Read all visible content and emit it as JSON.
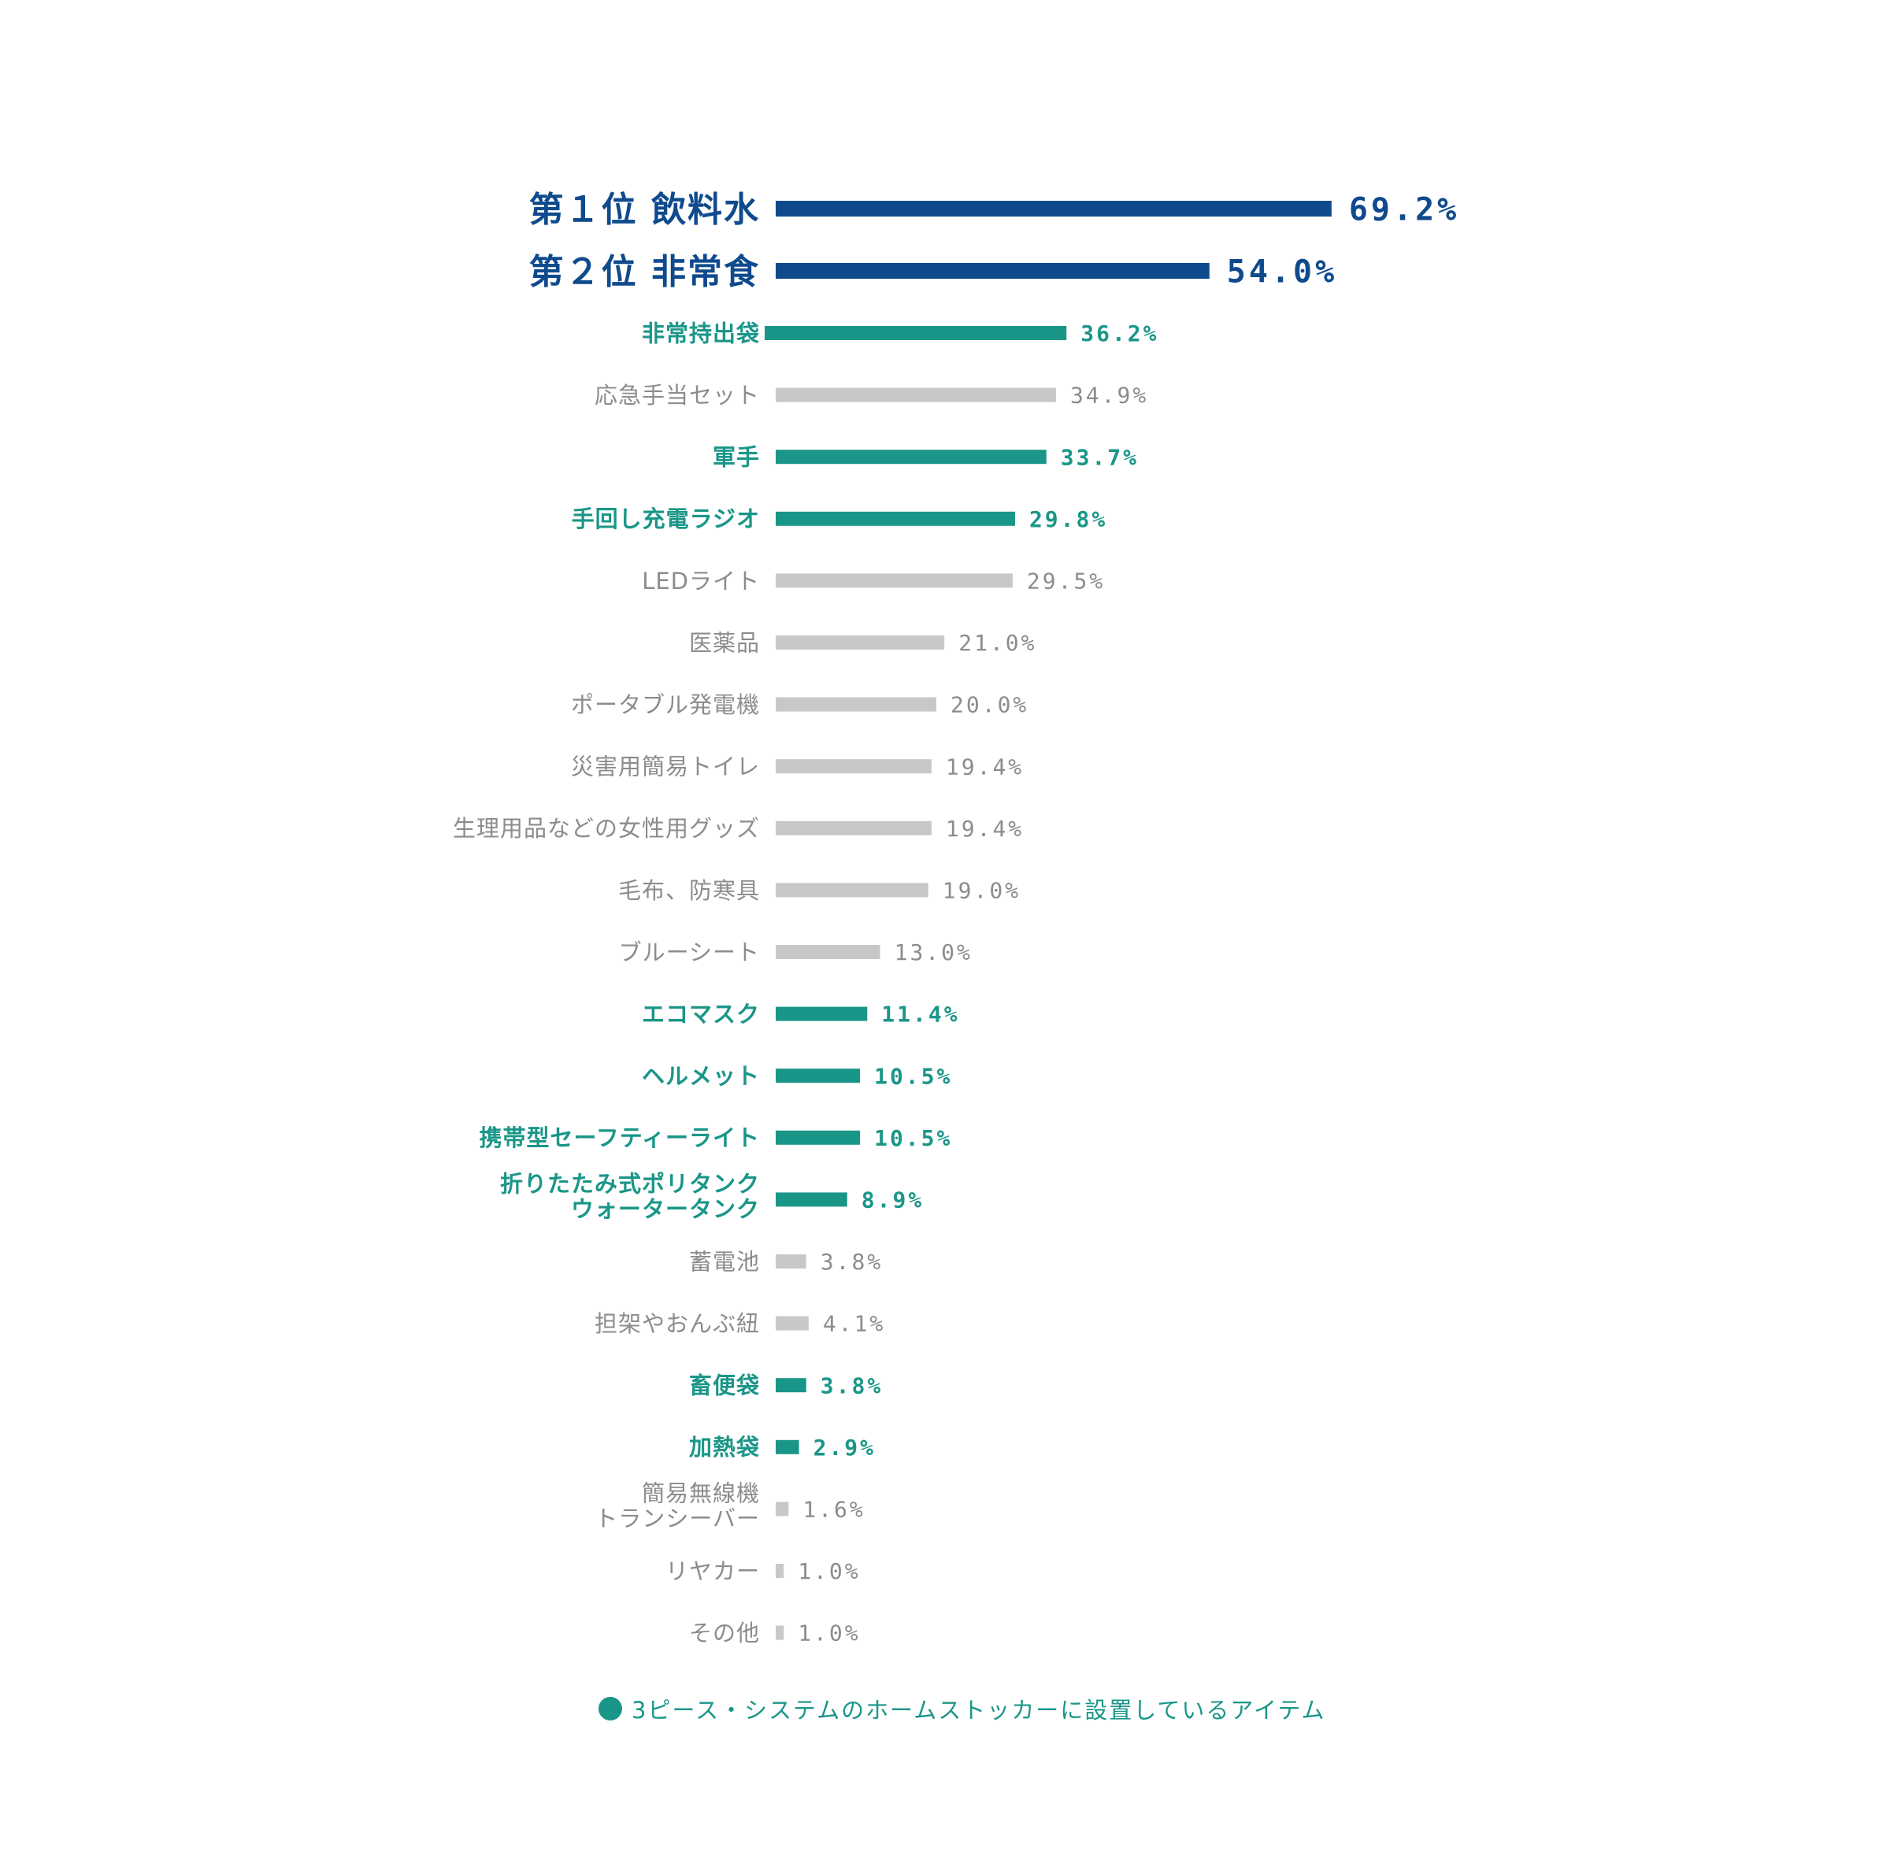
{
  "colors": {
    "top": "#0f4a8d",
    "highlight": "#1a9688",
    "other": "#c8c8c8",
    "other_text": "#8c8c8c"
  },
  "legend": {
    "label": "3ピース・システムのホームストッカーに設置しているアイテム"
  },
  "chart_data": {
    "type": "bar",
    "orientation": "horizontal",
    "xlim": [
      0,
      100
    ],
    "categories": [
      "第１位 飲料水",
      "第２位 非常食",
      "非常持出袋",
      "応急手当セット",
      "軍手",
      "手回し充電ラジオ",
      "LEDライト",
      "医薬品",
      "ポータブル発電機",
      "災害用簡易トイレ",
      "生理用品などの女性用グッズ",
      "毛布、防寒具",
      "ブルーシート",
      "エコマスク",
      "ヘルメット",
      "携帯型セーフティーライト",
      "折りたたみ式ポリタンク\nウォータータンク",
      "蓄電池",
      "担架やおんぶ紐",
      "畜便袋",
      "加熱袋",
      "簡易無線機\nトランシーバー",
      "リヤカー",
      "その他"
    ],
    "values": [
      69.2,
      54.0,
      36.2,
      34.9,
      33.7,
      29.8,
      29.5,
      21.0,
      20.0,
      19.4,
      19.4,
      19.0,
      13.0,
      11.4,
      10.5,
      10.5,
      8.9,
      3.8,
      4.1,
      3.8,
      2.9,
      1.6,
      1.0,
      1.0
    ],
    "value_labels": [
      "69.2%",
      "54.0%",
      "36.2%",
      "34.9%",
      "33.7%",
      "29.8%",
      "29.5%",
      "21.0%",
      "20.0%",
      "19.4%",
      "19.4%",
      "19.0%",
      "13.0%",
      "11.4%",
      "10.5%",
      "10.5%",
      "8.9%",
      "3.8%",
      "4.1%",
      "3.8%",
      "2.9%",
      "1.6%",
      "1.0%",
      "1.0%"
    ],
    "groups": [
      "top",
      "top",
      "highlight",
      "other",
      "highlight",
      "highlight",
      "other",
      "other",
      "other",
      "other",
      "other",
      "other",
      "other",
      "highlight",
      "highlight",
      "highlight",
      "highlight",
      "other",
      "other",
      "highlight",
      "highlight",
      "other",
      "other",
      "other"
    ],
    "legend_position": "bottom",
    "grid": false
  }
}
